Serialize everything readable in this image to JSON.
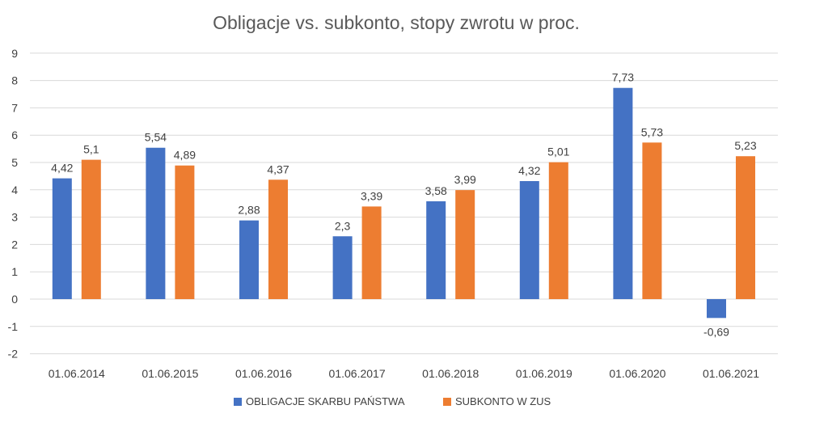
{
  "chart_data": {
    "type": "bar",
    "title": "Obligacje vs. subkonto, stopy zwrotu w proc.",
    "categories": [
      "01.06.2014",
      "01.06.2015",
      "01.06.2016",
      "01.06.2017",
      "01.06.2018",
      "01.06.2019",
      "01.06.2020",
      "01.06.2021"
    ],
    "series": [
      {
        "name": "OBLIGACJE SKARBU PAŃSTWA",
        "color": "#4472c4",
        "values": [
          4.42,
          5.54,
          2.88,
          2.3,
          3.58,
          4.32,
          7.73,
          -0.69
        ],
        "labels": [
          "4,42",
          "5,54",
          "2,88",
          "2,3",
          "3,58",
          "4,32",
          "7,73",
          "-0,69"
        ]
      },
      {
        "name": "SUBKONTO W ZUS",
        "color": "#ed7d31",
        "values": [
          5.1,
          4.89,
          4.37,
          3.39,
          3.99,
          5.01,
          5.73,
          5.23
        ],
        "labels": [
          "5,1",
          "4,89",
          "4,37",
          "3,39",
          "3,99",
          "5,01",
          "5,73",
          "5,23"
        ]
      }
    ],
    "ylim": [
      -2,
      9
    ],
    "yticks": [
      "-2",
      "-1",
      "0",
      "1",
      "2",
      "3",
      "4",
      "5",
      "6",
      "7",
      "8",
      "9"
    ],
    "grid": true,
    "legend_position": "bottom"
  }
}
